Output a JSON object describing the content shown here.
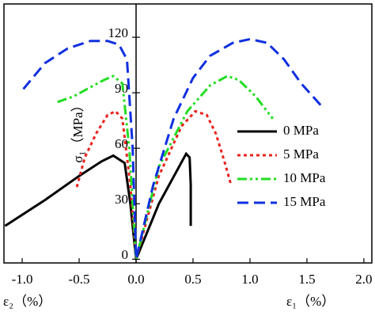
{
  "chart_data": {
    "type": "line",
    "x_label_left": "ε₂（%）",
    "x_label_right": "ε₁（%）",
    "y_label": "σ₁（MPa）",
    "xlim": [
      -1.16,
      2.07
    ],
    "ylim": [
      -2,
      138
    ],
    "xticks": [
      {
        "value": -1.0,
        "label": "-1.0"
      },
      -0.5,
      {
        "value": 0,
        "label": "0.0"
      },
      0.5,
      {
        "value": 1.0,
        "label": "1.0"
      },
      1.5,
      {
        "value": 2.0,
        "label": "2.0"
      }
    ],
    "yticks": [
      0,
      30,
      60,
      90,
      120
    ],
    "series": [
      {
        "name": "0 MPa",
        "color": "#000000",
        "dash": "solid",
        "x": [
          -1.15,
          -0.8,
          -0.5,
          -0.3,
          -0.2,
          -0.1,
          -0.05,
          0,
          0.2,
          0.44,
          0.47,
          0.48,
          0.48
        ],
        "values": [
          18,
          32,
          45,
          53,
          56,
          52,
          30,
          0,
          30,
          57,
          55,
          40,
          18
        ]
      },
      {
        "name": "5 MPa",
        "color": "#e8231e",
        "dash": "dotted",
        "x": [
          -0.52,
          -0.45,
          -0.35,
          -0.25,
          -0.18,
          -0.12,
          -0.05,
          0,
          0.2,
          0.4,
          0.52,
          0.62,
          0.7,
          0.78,
          0.83
        ],
        "values": [
          39,
          55,
          68,
          78,
          80,
          76,
          40,
          0,
          45,
          72,
          80,
          78,
          68,
          52,
          41
        ]
      },
      {
        "name": "10 MPa",
        "color": "#22dd22",
        "dash": "dashdot",
        "x": [
          -0.69,
          -0.55,
          -0.4,
          -0.28,
          -0.2,
          -0.12,
          -0.06,
          0,
          0.2,
          0.45,
          0.65,
          0.8,
          0.9,
          1.05,
          1.2
        ],
        "values": [
          85,
          88,
          93,
          97,
          99,
          95,
          60,
          0,
          50,
          80,
          94,
          99,
          97,
          88,
          76
        ]
      },
      {
        "name": "15 MPa",
        "color": "#1030e0",
        "dash": "dashed",
        "x": [
          -0.99,
          -0.8,
          -0.6,
          -0.4,
          -0.25,
          -0.15,
          -0.08,
          -0.03,
          0,
          0.15,
          0.33,
          0.5,
          0.65,
          0.85,
          1.0,
          1.15,
          1.3,
          1.45,
          1.64
        ],
        "values": [
          92,
          106,
          114,
          118,
          118,
          116,
          108,
          60,
          0,
          40,
          76,
          98,
          110,
          117,
          119,
          117,
          108,
          95,
          82
        ]
      }
    ]
  }
}
